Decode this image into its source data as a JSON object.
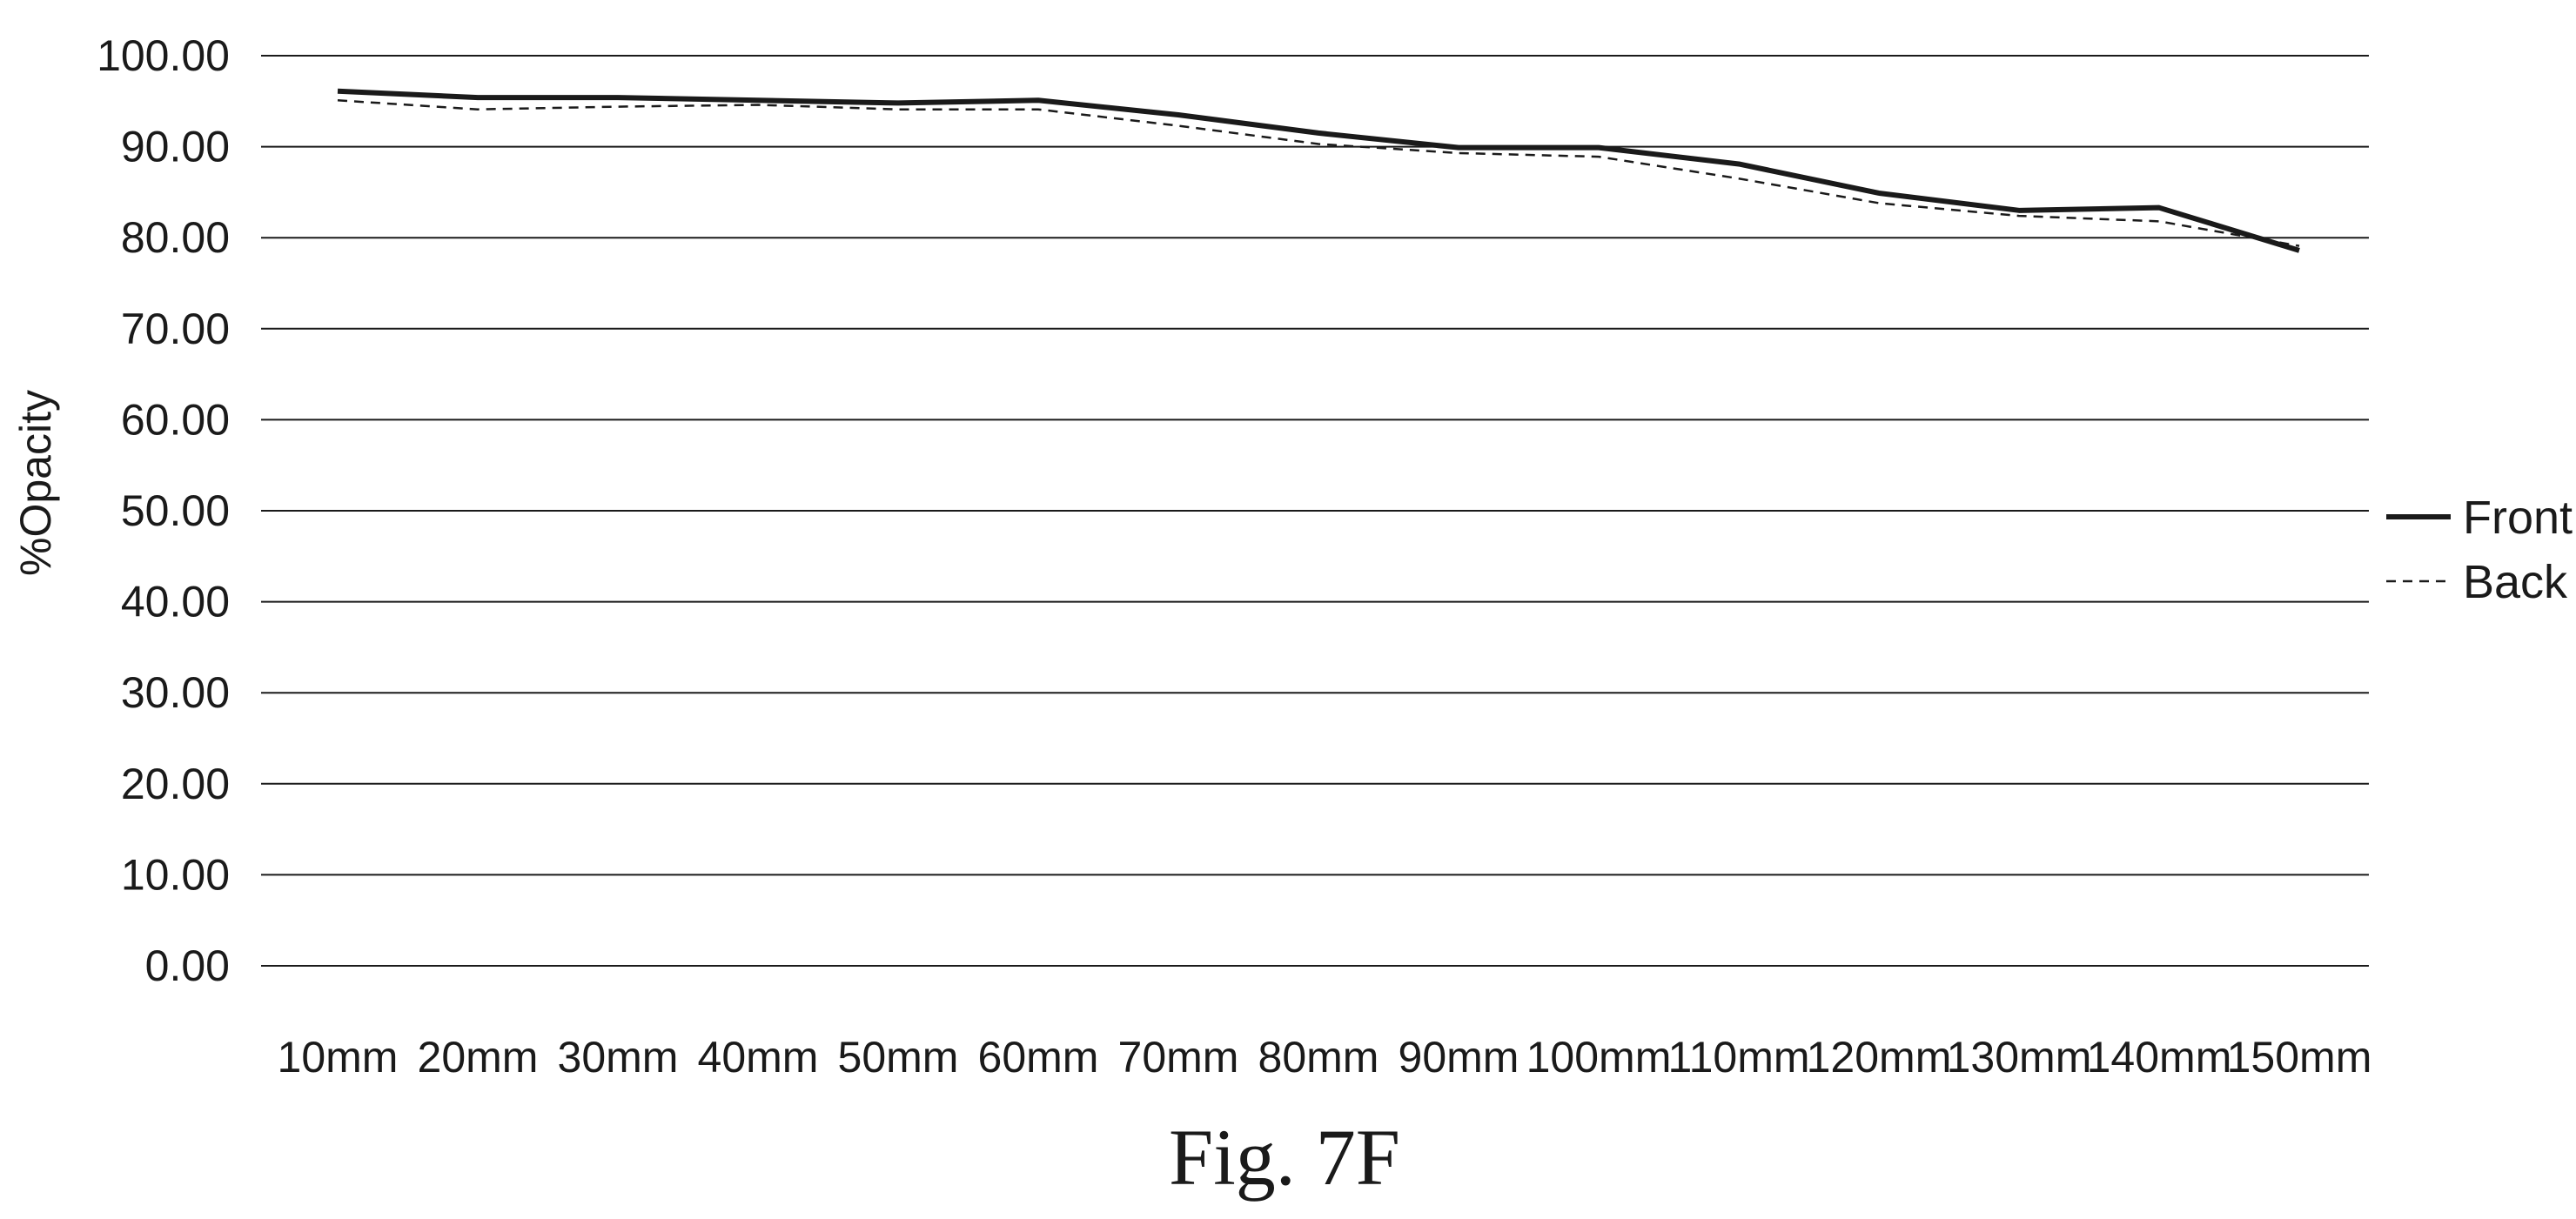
{
  "chart_data": {
    "type": "line",
    "title": "",
    "xlabel": "",
    "ylabel": "%Opacity",
    "ylim": [
      0,
      100
    ],
    "yticks": [
      "0.00",
      "10.00",
      "20.00",
      "30.00",
      "40.00",
      "50.00",
      "60.00",
      "70.00",
      "80.00",
      "90.00",
      "100.00"
    ],
    "categories": [
      "10mm",
      "20mm",
      "30mm",
      "40mm",
      "50mm",
      "60mm",
      "70mm",
      "80mm",
      "90mm",
      "100mm",
      "110mm",
      "120mm",
      "130mm",
      "140mm",
      "150mm"
    ],
    "series": [
      {
        "name": "Front",
        "style": "solid",
        "color": "#1a1a1a",
        "values": [
          96.1,
          95.4,
          95.4,
          95.1,
          94.8,
          95.1,
          93.5,
          91.5,
          89.9,
          89.9,
          88.1,
          84.9,
          83.0,
          83.3,
          78.6
        ]
      },
      {
        "name": "Back",
        "style": "dashed",
        "color": "#1a1a1a",
        "values": [
          95.1,
          94.1,
          94.4,
          94.6,
          94.1,
          94.1,
          92.3,
          90.3,
          89.3,
          88.9,
          86.5,
          83.8,
          82.4,
          81.8,
          79.1
        ]
      }
    ],
    "grid": true,
    "legend_position": "right"
  },
  "figure": {
    "caption": "Fig. 7F"
  }
}
